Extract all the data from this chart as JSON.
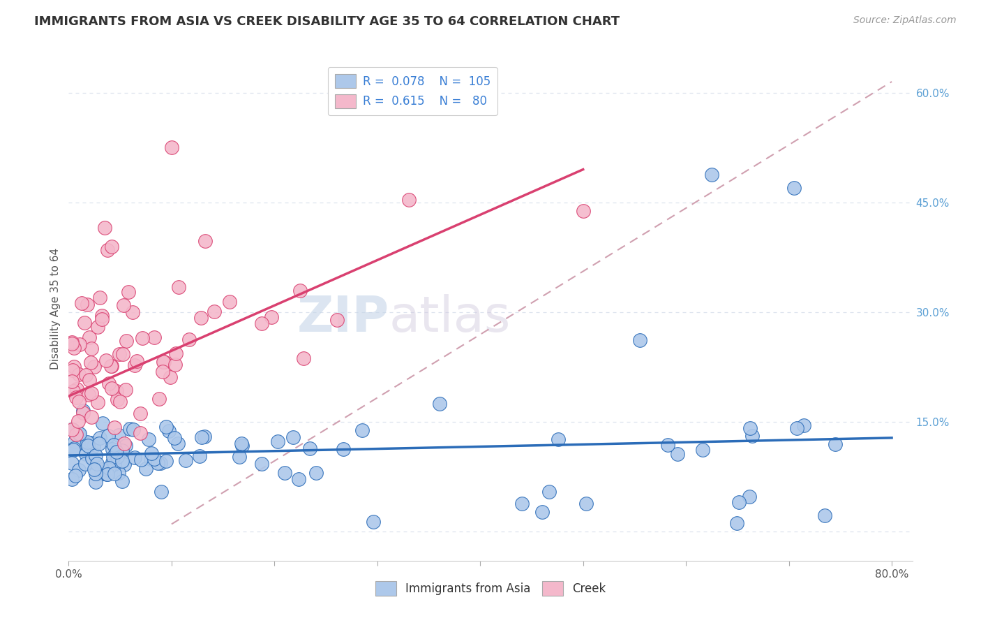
{
  "title": "IMMIGRANTS FROM ASIA VS CREEK DISABILITY AGE 35 TO 64 CORRELATION CHART",
  "source": "Source: ZipAtlas.com",
  "ylabel": "Disability Age 35 to 64",
  "xlim": [
    0.0,
    0.82
  ],
  "ylim": [
    -0.04,
    0.65
  ],
  "x_ticks": [
    0.0,
    0.1,
    0.2,
    0.3,
    0.4,
    0.5,
    0.6,
    0.7,
    0.8
  ],
  "y_ticks": [
    0.0,
    0.15,
    0.3,
    0.45,
    0.6
  ],
  "color_blue": "#adc8ea",
  "color_pink": "#f4b8cb",
  "line_blue": "#2b6cb8",
  "line_pink": "#d94070",
  "line_dashed_color": "#d0a0b0",
  "background_color": "#ffffff",
  "grid_color": "#dde3ee",
  "watermark_zip": "ZIP",
  "watermark_atlas": "atlas",
  "legend_R1": "R =  0.078",
  "legend_N1": "N =  105",
  "legend_R2": "R =  0.615",
  "legend_N2": "N =   80",
  "label_asia": "Immigrants from Asia",
  "label_creek": "Creek",
  "asia_line_x0": 0.0,
  "asia_line_y0": 0.104,
  "asia_line_x1": 0.8,
  "asia_line_y1": 0.128,
  "creek_line_x0": 0.0,
  "creek_line_y0": 0.185,
  "creek_line_x1": 0.5,
  "creek_line_y1": 0.495,
  "dash_line_x0": 0.1,
  "dash_line_y0": 0.01,
  "dash_line_x1": 0.8,
  "dash_line_y1": 0.615
}
